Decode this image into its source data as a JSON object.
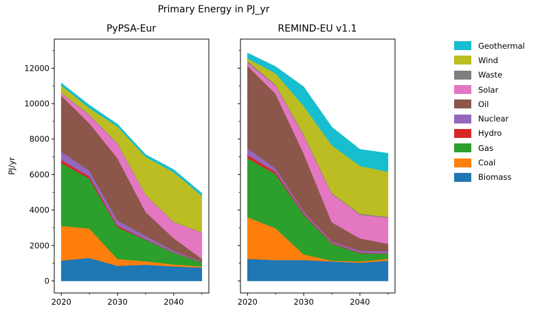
{
  "figure": {
    "title": "Primary Energy in PJ_yr",
    "ylabel": "PJ/yr"
  },
  "legend": {
    "items": [
      {
        "label": "Geothermal",
        "color": "#17becf"
      },
      {
        "label": "Wind",
        "color": "#bcbd22"
      },
      {
        "label": "Waste",
        "color": "#7f7f7f"
      },
      {
        "label": "Solar",
        "color": "#e377c2"
      },
      {
        "label": "Oil",
        "color": "#8c564b"
      },
      {
        "label": "Nuclear",
        "color": "#9467bd"
      },
      {
        "label": "Hydro",
        "color": "#d62728"
      },
      {
        "label": "Gas",
        "color": "#2ca02c"
      },
      {
        "label": "Coal",
        "color": "#ff7f0e"
      },
      {
        "label": "Biomass",
        "color": "#1f77b4"
      }
    ]
  },
  "chart_data": [
    {
      "type": "area",
      "stacked": true,
      "title": "PyPSA-Eur",
      "x": [
        2020,
        2025,
        2030,
        2035,
        2040,
        2045
      ],
      "xlim": [
        2018.75,
        2046.25
      ],
      "ylim": [
        -680,
        13640
      ],
      "xticks": [
        2020,
        2030,
        2040
      ],
      "xticks_minor": [
        2025,
        2035,
        2045
      ],
      "yticks": [
        0,
        2000,
        4000,
        6000,
        8000,
        10000,
        12000
      ],
      "yticks_minor": [
        1000,
        3000,
        5000,
        7000,
        9000,
        11000,
        13000
      ],
      "show_y_tick_labels": true,
      "series": [
        {
          "name": "Biomass",
          "color": "#1f77b4",
          "values": [
            1150,
            1300,
            850,
            920,
            820,
            760
          ]
        },
        {
          "name": "Coal",
          "color": "#ff7f0e",
          "values": [
            1950,
            1660,
            390,
            190,
            110,
            60
          ]
        },
        {
          "name": "Gas",
          "color": "#2ca02c",
          "values": [
            3550,
            2810,
            1790,
            1210,
            660,
            220
          ]
        },
        {
          "name": "Hydro",
          "color": "#d62728",
          "values": [
            170,
            130,
            90,
            35,
            20,
            15
          ]
        },
        {
          "name": "Nuclear",
          "color": "#9467bd",
          "values": [
            480,
            320,
            290,
            190,
            100,
            35
          ]
        },
        {
          "name": "Oil",
          "color": "#8c564b",
          "values": [
            3150,
            2680,
            3510,
            1340,
            700,
            160
          ]
        },
        {
          "name": "Solar",
          "color": "#e377c2",
          "values": [
            150,
            445,
            830,
            960,
            900,
            1480
          ]
        },
        {
          "name": "Waste",
          "color": "#7f7f7f",
          "values": [
            30,
            30,
            30,
            25,
            20,
            15
          ]
        },
        {
          "name": "Wind",
          "color": "#bcbd22",
          "values": [
            400,
            380,
            930,
            2130,
            2800,
            2060
          ]
        },
        {
          "name": "Geothermal",
          "color": "#17becf",
          "values": [
            130,
            165,
            130,
            125,
            150,
            140
          ]
        }
      ]
    },
    {
      "type": "area",
      "stacked": true,
      "title": "REMIND-EU v1.1",
      "x": [
        2020,
        2025,
        2030,
        2035,
        2040,
        2045
      ],
      "xlim": [
        2018.75,
        2046.25
      ],
      "ylim": [
        -680,
        13640
      ],
      "xticks": [
        2020,
        2030,
        2040
      ],
      "xticks_minor": [
        2025,
        2035,
        2045
      ],
      "yticks": [
        0,
        2000,
        4000,
        6000,
        8000,
        10000,
        12000
      ],
      "yticks_minor": [
        1000,
        3000,
        5000,
        7000,
        9000,
        11000,
        13000
      ],
      "show_y_tick_labels": false,
      "series": [
        {
          "name": "Biomass",
          "color": "#1f77b4",
          "values": [
            1250,
            1180,
            1180,
            1100,
            1030,
            1150
          ]
        },
        {
          "name": "Coal",
          "color": "#ff7f0e",
          "values": [
            2350,
            1790,
            320,
            40,
            70,
            100
          ]
        },
        {
          "name": "Gas",
          "color": "#2ca02c",
          "values": [
            3320,
            3060,
            2240,
            960,
            470,
            280
          ]
        },
        {
          "name": "Hydro",
          "color": "#d62728",
          "values": [
            190,
            130,
            60,
            40,
            30,
            20
          ]
        },
        {
          "name": "Nuclear",
          "color": "#9467bd",
          "values": [
            380,
            190,
            130,
            90,
            100,
            120
          ]
        },
        {
          "name": "Oil",
          "color": "#8c564b",
          "values": [
            4650,
            4210,
            3260,
            1080,
            700,
            420
          ]
        },
        {
          "name": "Solar",
          "color": "#e377c2",
          "values": [
            190,
            450,
            1020,
            1600,
            1340,
            1470
          ]
        },
        {
          "name": "Waste",
          "color": "#7f7f7f",
          "values": [
            70,
            60,
            50,
            50,
            50,
            50
          ]
        },
        {
          "name": "Wind",
          "color": "#bcbd22",
          "values": [
            160,
            640,
            1610,
            2700,
            2700,
            2550
          ]
        },
        {
          "name": "Geothermal",
          "color": "#17becf",
          "values": [
            300,
            380,
            1080,
            1020,
            930,
            1040
          ]
        }
      ]
    }
  ]
}
